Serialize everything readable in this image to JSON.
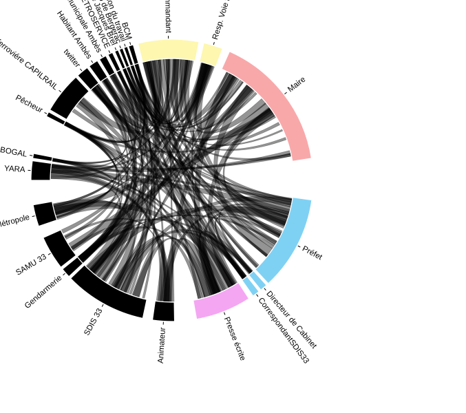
{
  "chord_diagram": {
    "groups": [
      {
        "label": "Animateur",
        "color": "#000000",
        "start": 179,
        "end": 188
      },
      {
        "label": "SDIS 33",
        "color": "#000000",
        "start": 192,
        "end": 226
      },
      {
        "label": "Gendarmerie",
        "color": "#000000",
        "start": 227,
        "end": 231
      },
      {
        "label": "SAMU 33",
        "color": "#000000",
        "start": 232,
        "end": 246
      },
      {
        "label": "Bordeaux Métropole",
        "color": "#000000",
        "start": 251,
        "end": 260
      },
      {
        "label": "YARA",
        "color": "#000000",
        "start": 270,
        "end": 278
      },
      {
        "label": "COBOGAL",
        "color": "#000000",
        "start": 279,
        "end": 281
      },
      {
        "label": "Pêcheur",
        "color": "#000000",
        "start": 297,
        "end": 299
      },
      {
        "label": "Gestionnaire d'exploitation ferroviére CAPILRAIL",
        "color": "#000000",
        "start": 300,
        "end": 317
      },
      {
        "label": "twitter",
        "color": "#000000",
        "start": 318,
        "end": 323
      },
      {
        "label": "Habitant Ambès",
        "color": "#000000",
        "start": 324,
        "end": 328
      },
      {
        "label": "Agent Police Municipale Ambès",
        "color": "#000000",
        "start": 329,
        "end": 332
      },
      {
        "label": "Tech PETROSERVICE",
        "color": "#000000",
        "start": 333,
        "end": 335
      },
      {
        "label": "Directrice groupe scolaire primaire Jacques Brel",
        "color": "#000000",
        "start": 336,
        "end": 337.5
      },
      {
        "label": "Capitaine Cyrano de Bergerac",
        "color": "#000000",
        "start": 338,
        "end": 339.5
      },
      {
        "label": "Inspection du travail",
        "color": "#000000",
        "start": 340,
        "end": 341.5
      },
      {
        "label": "BCM",
        "color": "#000000",
        "start": 342,
        "end": 344
      },
      {
        "label": "Commandant",
        "color": "#fdf7b0",
        "start": 346,
        "end": 371
      },
      {
        "label": "Resp. Voie ferrée",
        "color": "#fdf7b0",
        "start": 373,
        "end": 381
      },
      {
        "label": "Maire",
        "color": "#f9a8aa",
        "start": 384,
        "end": 441
      },
      {
        "label": "Préfet",
        "color": "#7fd1f4",
        "start": 458,
        "end": 497
      },
      {
        "label": "Directeur de Cabinet",
        "color": "#7fd1f4",
        "start": 498,
        "end": 501
      },
      {
        "label": "CorrespondantSDIS33",
        "color": "#7fd1f4",
        "start": 502,
        "end": 505
      },
      {
        "label": "Presse écrite",
        "color": "#f4a6f2",
        "start": 507,
        "end": 530
      }
    ]
  }
}
